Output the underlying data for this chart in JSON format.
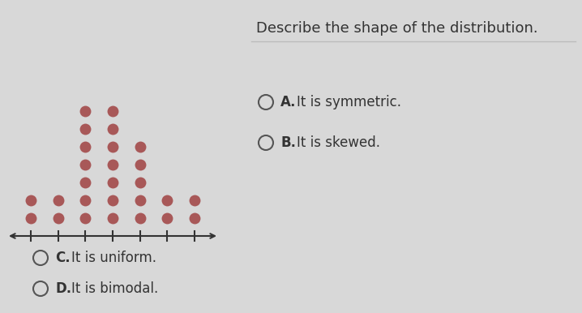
{
  "title": "Describe the shape of the distribution.",
  "dot_counts": [
    2,
    2,
    7,
    7,
    5,
    2,
    2
  ],
  "num_columns": 7,
  "dot_color": "#a85858",
  "bg_color": "#d8d8d8",
  "options_right": [
    {
      "label": "A.",
      "text": "It is symmetric."
    },
    {
      "label": "B.",
      "text": "It is skewed."
    }
  ],
  "options_bottom": [
    {
      "label": "C.",
      "text": "It is uniform."
    },
    {
      "label": "D.",
      "text": "It is bimodal."
    }
  ],
  "title_fontsize": 13,
  "option_fontsize": 12
}
